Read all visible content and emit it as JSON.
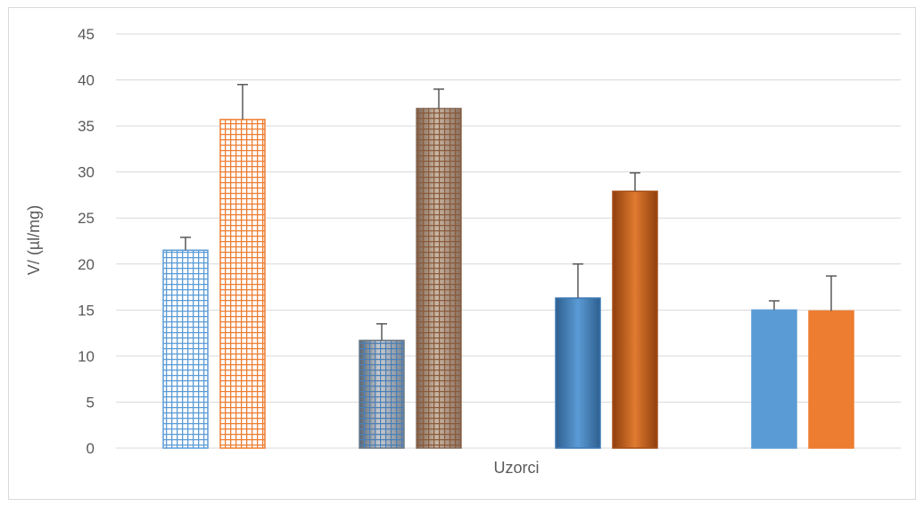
{
  "chart_data": {
    "type": "bar",
    "title": "",
    "xlabel": "Uzorci",
    "ylabel": "V/ (µl/mg)",
    "ylim": [
      0,
      45
    ],
    "yticks": [
      0,
      5,
      10,
      15,
      20,
      25,
      30,
      35,
      40,
      45
    ],
    "grid": true,
    "legend": "none",
    "groups": [
      {
        "bars": [
          {
            "value": 21.5,
            "error": 1.4,
            "color": "#5b9bd5",
            "style": "grid-outline"
          },
          {
            "value": 35.7,
            "error": 3.8,
            "color": "#ed7d31",
            "style": "grid-outline"
          }
        ]
      },
      {
        "bars": [
          {
            "value": 11.7,
            "error": 1.8,
            "color": "#5b9bd5",
            "style": "grid-gradient"
          },
          {
            "value": 36.9,
            "error": 2.1,
            "color": "#c55a11",
            "style": "grid-gradient"
          }
        ]
      },
      {
        "bars": [
          {
            "value": 16.3,
            "error": 3.7,
            "color": "#5b9bd5",
            "style": "gradient"
          },
          {
            "value": 27.9,
            "error": 2.0,
            "color": "#c55a11",
            "style": "gradient"
          }
        ]
      },
      {
        "bars": [
          {
            "value": 15.0,
            "error": 1.0,
            "color": "#5b9bd5",
            "style": "solid"
          },
          {
            "value": 14.9,
            "error": 3.8,
            "color": "#ed7d31",
            "style": "solid"
          }
        ]
      }
    ]
  },
  "colors": {
    "gridline": "#d9d9d9",
    "axis_text": "#595959",
    "error_bar": "#595959"
  }
}
